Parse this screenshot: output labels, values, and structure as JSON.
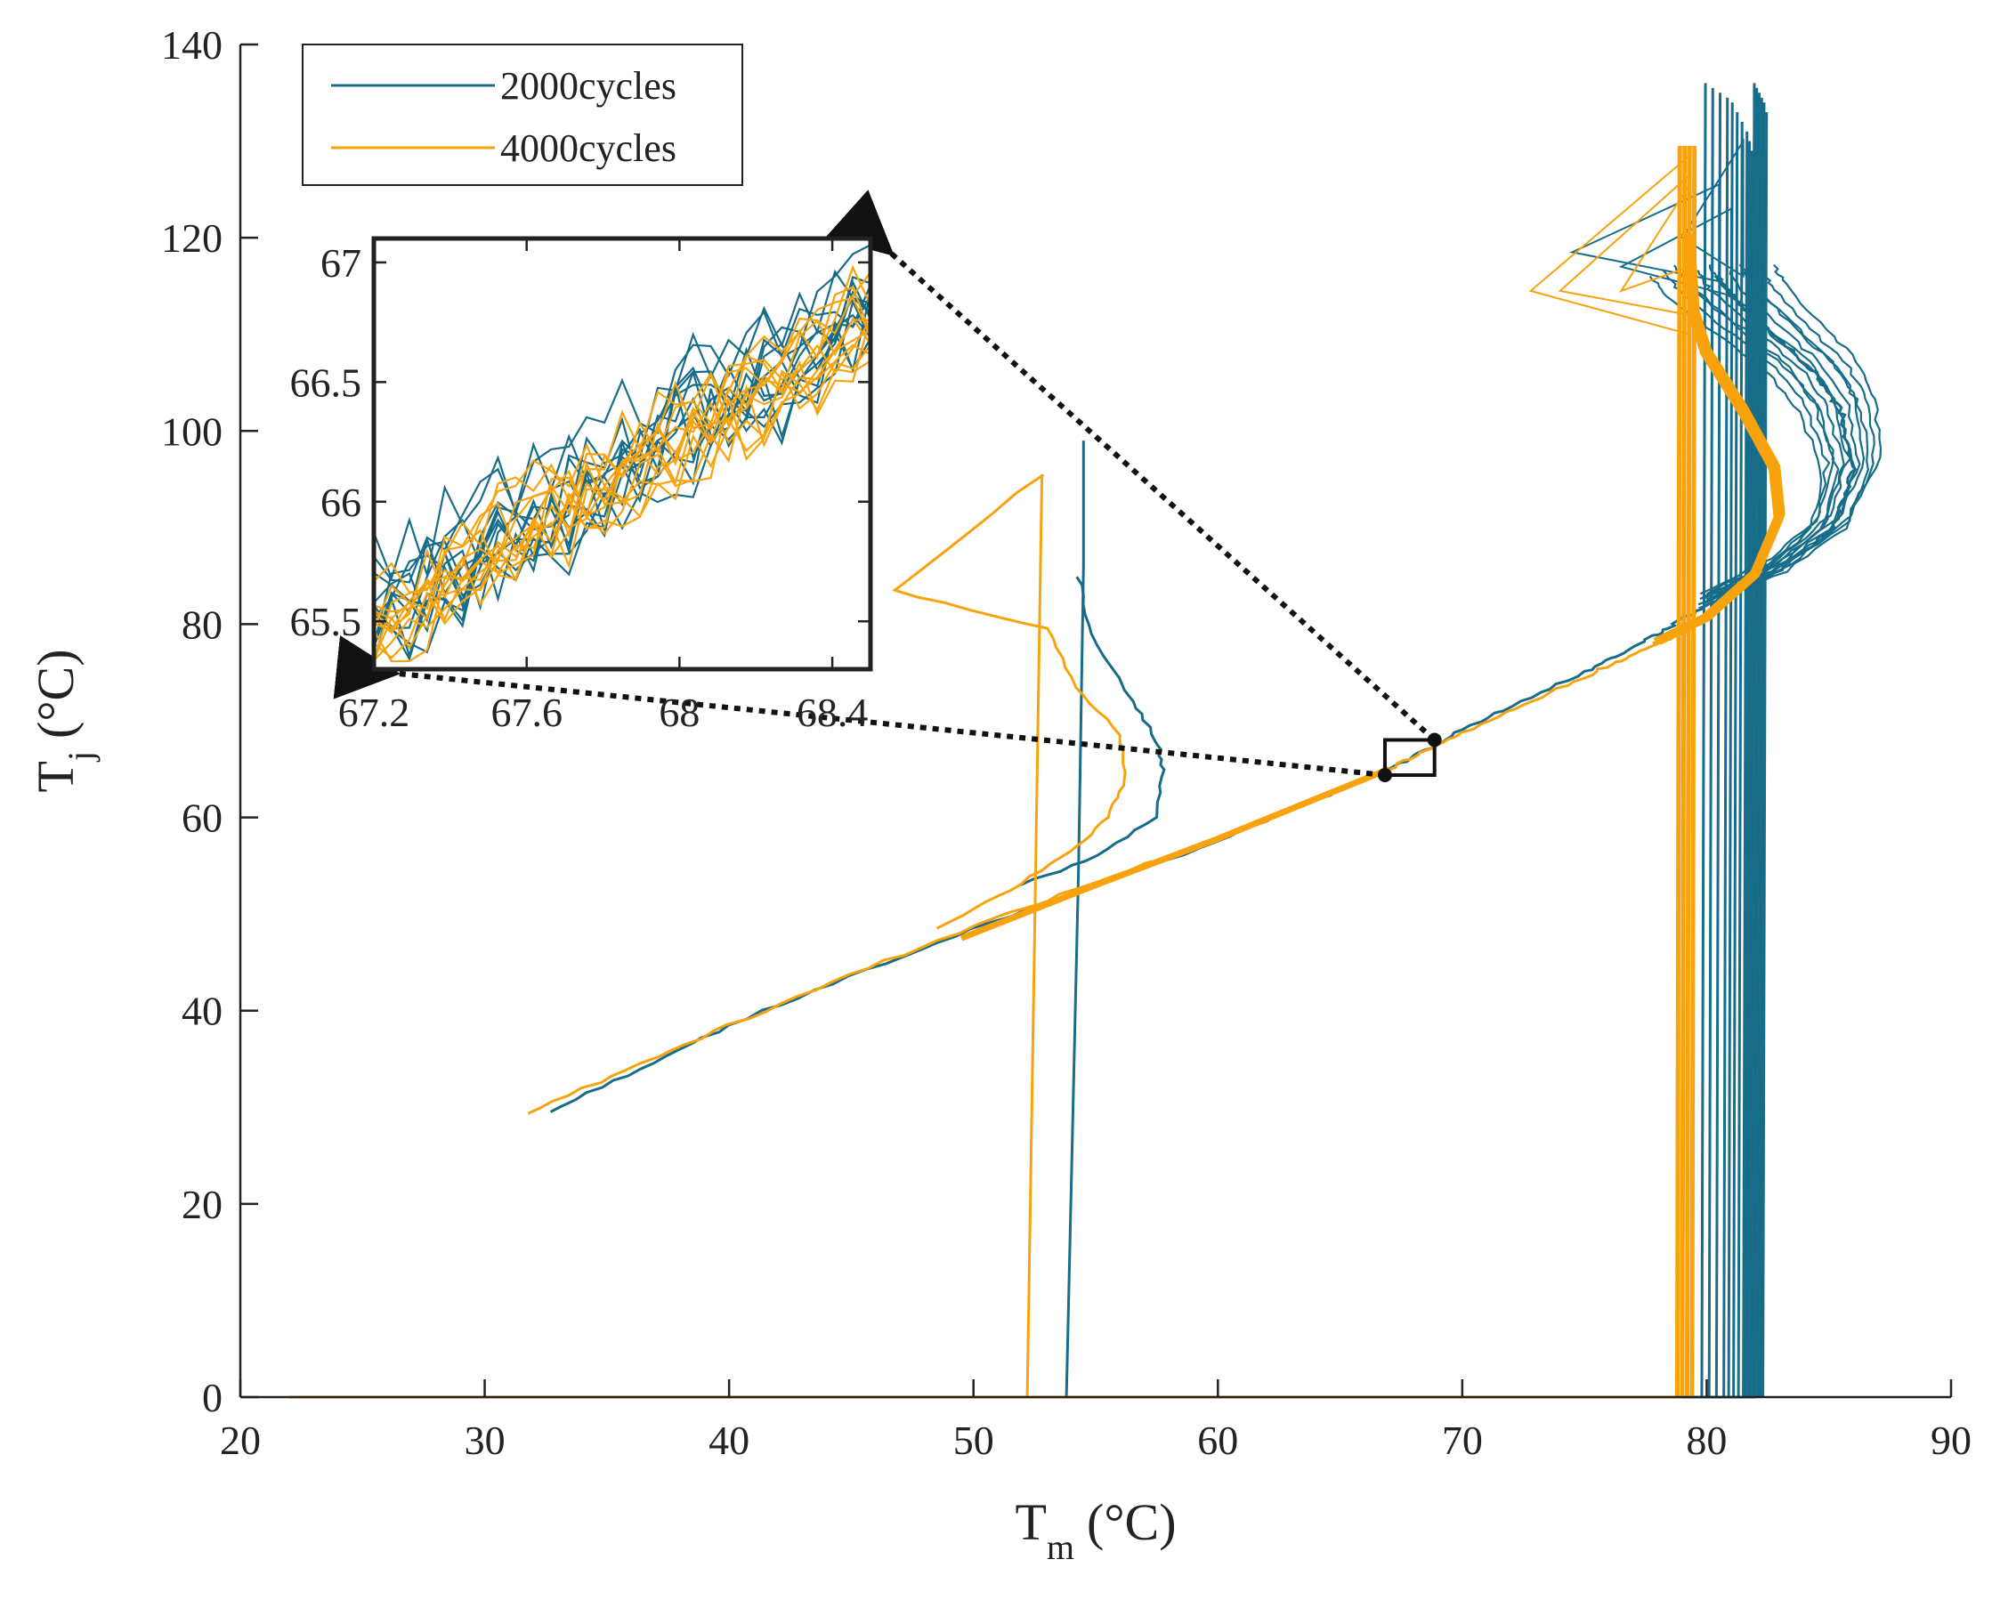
{
  "chart_data": [
    {
      "type": "line",
      "role": "main",
      "xlabel": {
        "base": "T",
        "sub": "m",
        "unit": "(°C)"
      },
      "ylabel": {
        "base": "T",
        "sub": "j",
        "unit": "(°C)"
      },
      "xlim": [
        20,
        90
      ],
      "ylim": [
        0,
        140
      ],
      "xticks": [
        "20",
        "30",
        "40",
        "50",
        "60",
        "70",
        "80",
        "90"
      ],
      "yticks": [
        "0",
        "20",
        "40",
        "60",
        "80",
        "100",
        "120",
        "140"
      ],
      "legend": {
        "placement": "top-left",
        "entries": [
          "2000cycles",
          "4000cycles"
        ]
      },
      "series": [
        {
          "name": "2000cycles",
          "color": "#176d89",
          "baseline": [
            [
              22,
              0
            ],
            [
              82,
              0
            ]
          ],
          "main_curve": [
            [
              32.7,
              29.5
            ],
            [
              40,
              38.5
            ],
            [
              50,
              48.5
            ],
            [
              60,
              57.5
            ],
            [
              67,
              65
            ],
            [
              70,
              69
            ],
            [
              75,
              75
            ],
            [
              78,
              79
            ],
            [
              80,
              82
            ],
            [
              83,
              85.5
            ],
            [
              85.2,
              90
            ],
            [
              86,
              96
            ],
            [
              85.5,
              102
            ],
            [
              84.5,
              106
            ],
            [
              82.7,
              110
            ],
            [
              81,
              114
            ],
            [
              80.5,
              116
            ]
          ],
          "spike_low": [
            [
              53.8,
              0
            ],
            [
              54.3,
              55
            ],
            [
              54.5,
              86
            ],
            [
              54.5,
              99
            ]
          ],
          "bulge_low": [
            [
              54.3,
              85
            ],
            [
              54.8,
              79
            ],
            [
              56.5,
              72
            ],
            [
              57.5,
              68
            ],
            [
              57.8,
              65
            ],
            [
              57.5,
              60
            ],
            [
              55,
              56
            ],
            [
              52,
              53
            ]
          ],
          "vertical_x": [
            79.8,
            80.1,
            80.4,
            80.7,
            80.9,
            81.1,
            81.3,
            81.5,
            81.6,
            81.7,
            81.8,
            81.9,
            82.0,
            82.1,
            82.2,
            82.3
          ],
          "vertical_top": [
            136,
            135.5,
            135,
            134.5,
            134,
            133,
            132,
            131,
            130,
            129
          ],
          "top_triangles": [
            [
              [
                74.5,
                118.5
              ],
              [
                80.5,
                125.5
              ],
              [
                80.5,
                115.5
              ]
            ],
            [
              [
                76.5,
                117
              ],
              [
                81,
                123
              ],
              [
                81,
                114
              ]
            ],
            [
              [
                79,
                120
              ],
              [
                81.5,
                130
              ],
              [
                81.5,
                116
              ]
            ]
          ],
          "envelope": {
            "left": [
              78.0,
              80.5
            ],
            "right": [
              85.0,
              86.2
            ]
          }
        },
        {
          "name": "4000cycles",
          "color": "#f8a30d",
          "baseline": [
            [
              22,
              0
            ],
            [
              79,
              0
            ]
          ],
          "main_curve": [
            [
              31.7,
              29.3
            ],
            [
              40,
              38.5
            ],
            [
              50,
              48.8
            ],
            [
              60,
              57.8
            ],
            [
              67,
              65
            ],
            [
              70,
              68.8
            ],
            [
              75,
              74.5
            ],
            [
              78,
              78
            ],
            [
              80,
              80.5
            ],
            [
              82,
              85
            ],
            [
              83,
              91
            ],
            [
              82.8,
              96
            ],
            [
              81.5,
              102
            ],
            [
              80,
              108
            ],
            [
              79.5,
              112
            ],
            [
              79.3,
              120
            ]
          ],
          "spike_low": [
            [
              52.2,
              0
            ],
            [
              52.8,
              95.5
            ]
          ],
          "triangle_low": [
            [
              52.8,
              95.5
            ],
            [
              46.8,
              83.5
            ],
            [
              53,
              79.5
            ],
            [
              54.2,
              73.5
            ],
            [
              56,
              68.5
            ],
            [
              56.2,
              64
            ],
            [
              55.5,
              60
            ],
            [
              54,
              56.5
            ],
            [
              51.5,
              52.5
            ],
            [
              48.5,
              48.5
            ]
          ],
          "vertical_x": [
            78.8,
            79.0,
            79.2,
            79.4
          ],
          "vertical_top": 129.5,
          "top_triangles": [
            [
              [
                72.8,
                114.5
              ],
              [
                79.3,
                128.5
              ],
              [
                79.3,
                110
              ]
            ],
            [
              [
                74,
                114.5
              ],
              [
                79.3,
                126.5
              ],
              [
                79.3,
                112
              ]
            ],
            [
              [
                76.5,
                114.5
              ],
              [
                79.3,
                125.5
              ],
              [
                79.3,
                117
              ]
            ]
          ],
          "thick_segment": [
            [
              49.5,
              47.5
            ],
            [
              55,
              53
            ],
            [
              60,
              57.8
            ],
            [
              67,
              65
            ]
          ]
        }
      ],
      "zoom_box": {
        "x": [
          67.2,
          68.5
        ],
        "y": [
          65.3,
          67.1
        ]
      }
    },
    {
      "type": "line",
      "role": "inset",
      "xlim": [
        67.2,
        68.5
      ],
      "ylim": [
        65.3,
        67.1
      ],
      "xticks": [
        "67.2",
        "67.6",
        "68",
        "68.4"
      ],
      "yticks": [
        "65.5",
        "66",
        "66.5",
        "67"
      ],
      "series": [
        {
          "name": "2000cycles",
          "color": "#176d89",
          "trend": [
            [
              67.2,
              65.55
            ],
            [
              68.5,
              66.85
            ]
          ],
          "noise": 0.18,
          "count": 12
        },
        {
          "name": "4000cycles",
          "color": "#f8a30d",
          "trend": [
            [
              67.2,
              65.48
            ],
            [
              68.5,
              66.75
            ]
          ],
          "noise": 0.14,
          "count": 12
        }
      ]
    }
  ]
}
